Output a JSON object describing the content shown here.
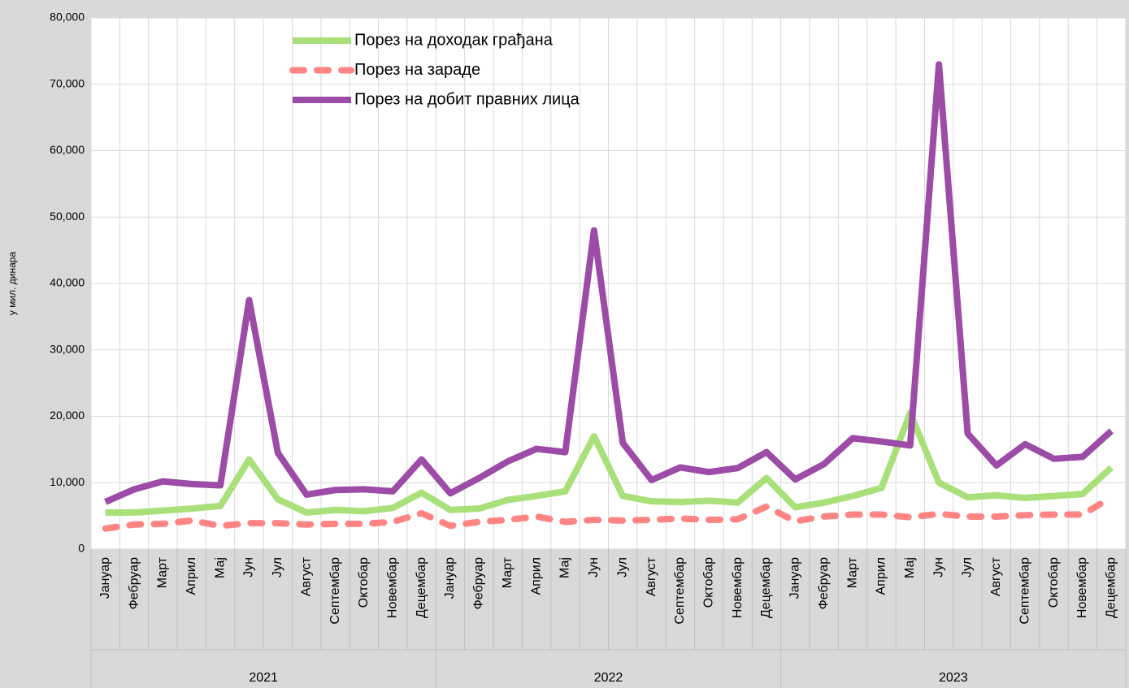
{
  "chart_data": {
    "type": "line",
    "y_label": "у мил. динара",
    "categories": [
      "Јануар",
      "Фебруар",
      "Март",
      "Април",
      "Мај",
      "Јун",
      "Јул",
      "Август",
      "Септембар",
      "Октобар",
      "Новембар",
      "Децембар",
      "Јануар",
      "Фебруар",
      "Март",
      "Април",
      "Мај",
      "Јун",
      "Јул",
      "Август",
      "Септембар",
      "Октобар",
      "Новембар",
      "Децембар",
      "Јануар",
      "Фебруар",
      "Март",
      "Април",
      "Мај",
      "Јун",
      "Јул",
      "Август",
      "Септембар",
      "Октобар",
      "Новембар",
      "Децембар"
    ],
    "groups": [
      "2021",
      "2022",
      "2023"
    ],
    "series": [
      {
        "name": "Порез на доходак грађана",
        "color": "#a9e07a",
        "line_style": "solid",
        "values": [
          5500,
          5500,
          5800,
          6100,
          6500,
          13500,
          7500,
          5500,
          5900,
          5700,
          6200,
          8500,
          5900,
          6100,
          7400,
          8000,
          8700,
          17000,
          8000,
          7200,
          7100,
          7300,
          7000,
          10700,
          6300,
          7000,
          8000,
          9200,
          20500,
          10000,
          7800,
          8100,
          7700,
          8000,
          8300,
          12300
        ]
      },
      {
        "name": "Порез на зараде",
        "color": "#ff8484",
        "line_style": "dashed",
        "values": [
          3100,
          3700,
          3800,
          4300,
          3500,
          3900,
          3900,
          3700,
          3800,
          3800,
          4100,
          5400,
          3500,
          4100,
          4400,
          4900,
          4100,
          4400,
          4300,
          4400,
          4600,
          4400,
          4500,
          6400,
          4200,
          4900,
          5200,
          5200,
          4800,
          5300,
          4900,
          4900,
          5100,
          5200,
          5200,
          7800
        ]
      },
      {
        "name": "Порез на добит правних лица",
        "color": "#9c4ba6",
        "line_style": "solid",
        "values": [
          7100,
          9000,
          10200,
          9800,
          9600,
          37500,
          14500,
          8200,
          8900,
          9000,
          8700,
          13500,
          8400,
          10700,
          13200,
          15100,
          14600,
          48000,
          16000,
          10400,
          12300,
          11600,
          12200,
          14600,
          10500,
          12800,
          16700,
          16200,
          15600,
          73000,
          17400,
          12600,
          15800,
          13600,
          13900,
          17800
        ]
      }
    ],
    "ylim": [
      0,
      80000
    ],
    "yticks": [
      0,
      {
        "value": 10000,
        "label": "10,000"
      },
      {
        "value": 20000,
        "label": "20,000"
      },
      {
        "value": 30000,
        "label": "30,000"
      },
      {
        "value": 40000,
        "label": "40,000"
      },
      {
        "value": 50000,
        "label": "50,000"
      },
      {
        "value": 60000,
        "label": "60,000"
      },
      {
        "value": 70000,
        "label": "70,000"
      },
      {
        "value": 80000,
        "label": "80,000"
      }
    ],
    "grid": true,
    "legend": "upper left"
  }
}
